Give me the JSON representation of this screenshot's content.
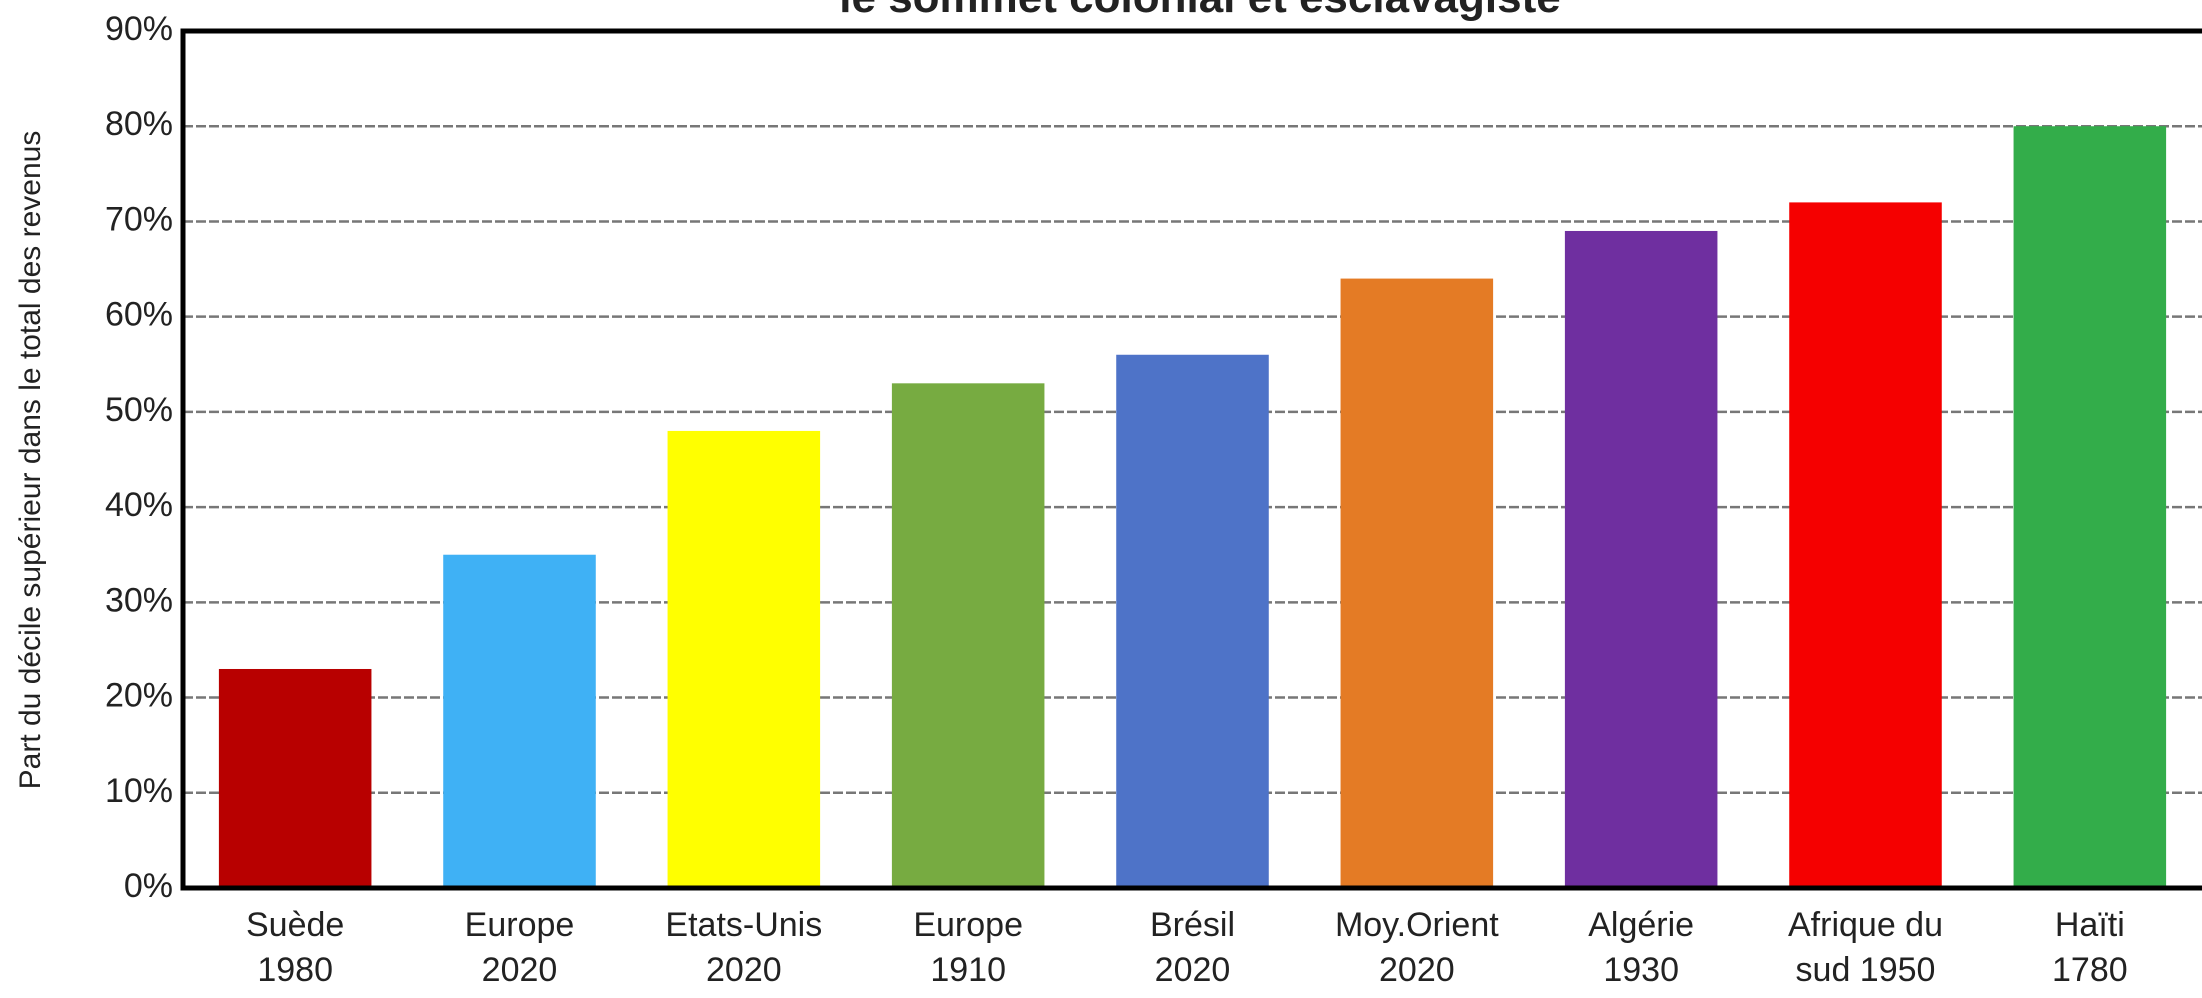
{
  "chart_data": {
    "type": "bar",
    "title": "le sommet colonial et esclavagiste",
    "ylabel": "Part du décile supérieur dans le total des revenus",
    "categories": [
      "Suède\n1980",
      "Europe\n2020",
      "Etats-Unis\n2020",
      "Europe\n1910",
      "Brésil\n2020",
      "Moy.Orient\n2020",
      "Algérie\n1930",
      "Afrique du\nsud 1950",
      "Haïti\n1780"
    ],
    "values": [
      23,
      35,
      48,
      53,
      56,
      64,
      69,
      72,
      80
    ],
    "colors": [
      "#b80000",
      "#3fb1f5",
      "#ffff00",
      "#77ab41",
      "#4e73c8",
      "#e47b25",
      "#6f2fa0",
      "#f50000",
      "#33ad4a"
    ],
    "ylim": [
      0,
      90
    ],
    "yticks": [
      {
        "value": 0,
        "label": "0%"
      },
      {
        "value": 10,
        "label": "10%"
      },
      {
        "value": 20,
        "label": "20%"
      },
      {
        "value": 30,
        "label": "30%"
      },
      {
        "value": 40,
        "label": "40%"
      },
      {
        "value": 50,
        "label": "50%"
      },
      {
        "value": 60,
        "label": "60%"
      },
      {
        "value": 70,
        "label": "70%"
      },
      {
        "value": 80,
        "label": "80%"
      },
      {
        "value": 90,
        "label": "90%"
      }
    ],
    "grid": true
  }
}
